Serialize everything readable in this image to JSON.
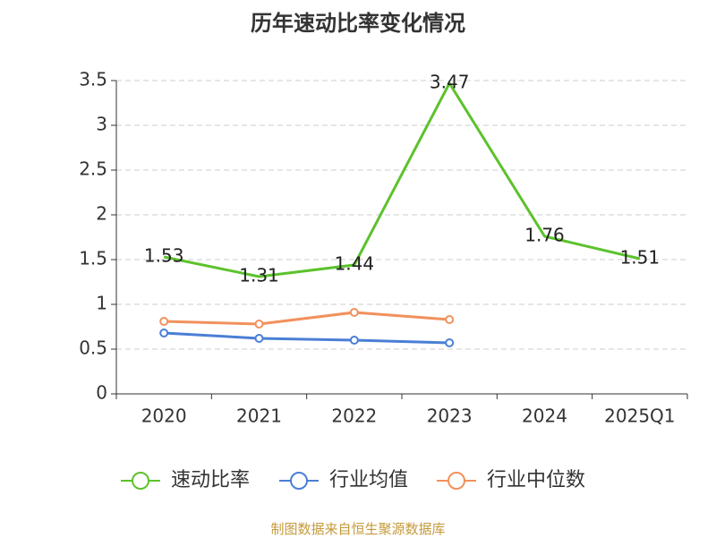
{
  "title": "历年速动比率变化情况",
  "footer": "制图数据来自恒生聚源数据库",
  "chart_data": {
    "type": "line",
    "title": "历年速动比率变化情况",
    "categories": [
      "2020",
      "2021",
      "2022",
      "2023",
      "2024",
      "2025Q1"
    ],
    "ylim": [
      0,
      3.5
    ],
    "yticks": [
      0,
      0.5,
      1,
      1.5,
      2,
      2.5,
      3,
      3.5
    ],
    "ytick_labels": [
      "0",
      "0.5",
      "1",
      "1.5",
      "2",
      "2.5",
      "3",
      "3.5"
    ],
    "grid": true,
    "legend_position": "bottom",
    "series": [
      {
        "name": "速动比率",
        "color": "#5cc22c",
        "values": [
          1.53,
          1.31,
          1.44,
          3.47,
          1.76,
          1.51
        ],
        "labels": [
          "1.53",
          "1.31",
          "1.44",
          "3.47",
          "1.76",
          "1.51"
        ],
        "show_markers": false,
        "show_labels": true
      },
      {
        "name": "行业均值",
        "color": "#4a7fd6",
        "values": [
          0.68,
          0.62,
          0.6,
          0.57,
          null,
          null
        ],
        "show_markers": true,
        "show_labels": false
      },
      {
        "name": "行业中位数",
        "color": "#f2905c",
        "values": [
          0.81,
          0.78,
          0.91,
          0.83,
          null,
          null
        ],
        "show_markers": true,
        "show_labels": false
      }
    ]
  }
}
